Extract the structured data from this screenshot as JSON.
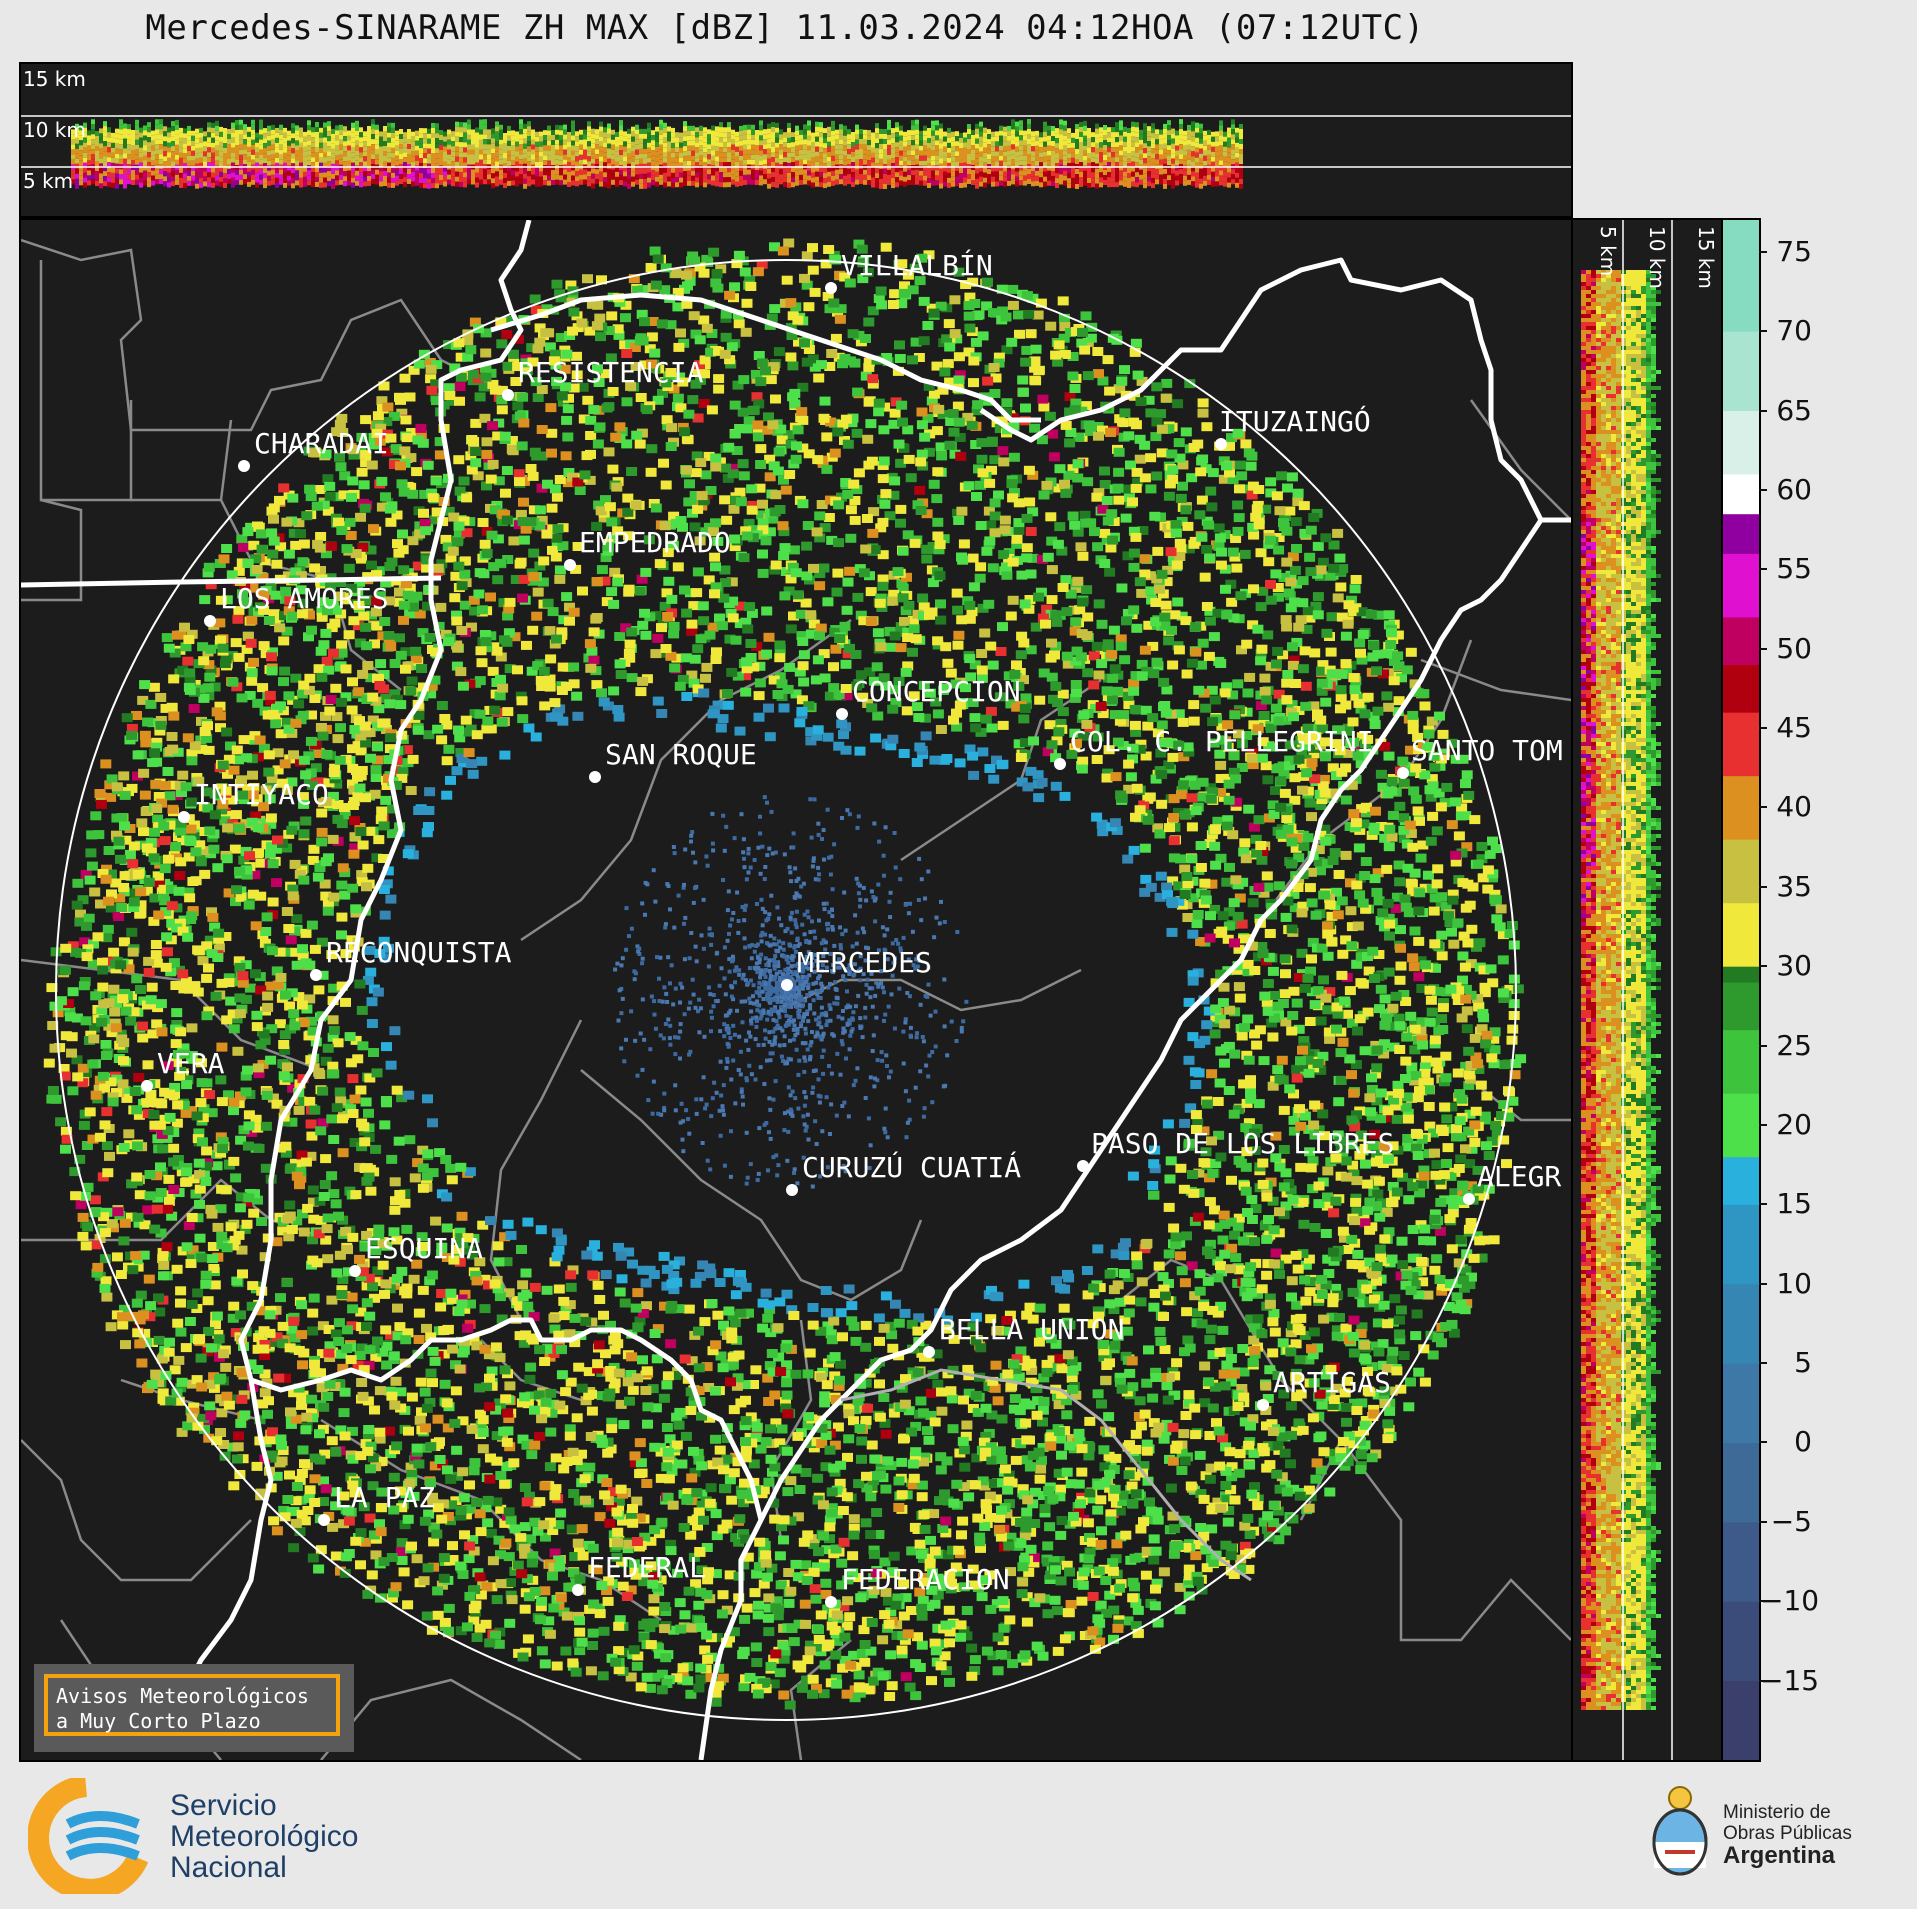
{
  "title": "Mercedes-SINARAME ZH MAX [dBZ] 11.03.2024 04:12HOA (07:12UTC)",
  "top_panel": {
    "height_labels": [
      "15 km",
      "10 km",
      "5 km"
    ]
  },
  "side_panel": {
    "height_labels": [
      "5 km",
      "10 km",
      "15 km"
    ]
  },
  "colorbar": {
    "unit": "dBZ",
    "range": [
      -20,
      77
    ],
    "ticks": [
      "75",
      "70",
      "65",
      "60",
      "55",
      "50",
      "45",
      "40",
      "35",
      "30",
      "25",
      "20",
      "15",
      "10",
      "5",
      "0",
      "−5",
      "−10",
      "−15"
    ],
    "tick_values": [
      75,
      70,
      65,
      60,
      55,
      50,
      45,
      40,
      35,
      30,
      25,
      20,
      15,
      10,
      5,
      0,
      -5,
      -10,
      -15
    ],
    "stops": [
      {
        "from": -20,
        "color": "#3a3f6b"
      },
      {
        "from": -15,
        "color": "#3b4b7a"
      },
      {
        "from": -10,
        "color": "#3d5a8a"
      },
      {
        "from": -5,
        "color": "#3e6a98"
      },
      {
        "from": 0,
        "color": "#3d78a6"
      },
      {
        "from": 5,
        "color": "#3686b4"
      },
      {
        "from": 10,
        "color": "#2f95c2"
      },
      {
        "from": 15,
        "color": "#2ab0dc"
      },
      {
        "from": 18,
        "color": "#4ee04a"
      },
      {
        "from": 22,
        "color": "#3ec43c"
      },
      {
        "from": 26,
        "color": "#2e9a2e"
      },
      {
        "from": 29,
        "color": "#227a22"
      },
      {
        "from": 30,
        "color": "#f0e83a"
      },
      {
        "from": 34,
        "color": "#c8c040"
      },
      {
        "from": 38,
        "color": "#dc9020"
      },
      {
        "from": 42,
        "color": "#e83030"
      },
      {
        "from": 46,
        "color": "#b00010"
      },
      {
        "from": 49,
        "color": "#c00060"
      },
      {
        "from": 52,
        "color": "#e010d0"
      },
      {
        "from": 56,
        "color": "#9000a0"
      },
      {
        "from": 58.5,
        "color": "#ffffff"
      },
      {
        "from": 61,
        "color": "#d8f0e8"
      },
      {
        "from": 65,
        "color": "#a8e4d0"
      },
      {
        "from": 70,
        "color": "#86dcc0"
      }
    ]
  },
  "cities": [
    {
      "name": "VILLALBÍN"
    },
    {
      "name": "RESISTENCIA"
    },
    {
      "name": "CHARADAI"
    },
    {
      "name": "ITUZAINGÓ"
    },
    {
      "name": "EMPEDRADO"
    },
    {
      "name": "LOS AMORES"
    },
    {
      "name": "CONCEPCION"
    },
    {
      "name": "SAN ROQUE"
    },
    {
      "name": "COL. C. PELLEGRINI"
    },
    {
      "name": "SANTO TOM"
    },
    {
      "name": "INTIYACO"
    },
    {
      "name": "MERCEDES"
    },
    {
      "name": "RECONQUISTA"
    },
    {
      "name": "VERA"
    },
    {
      "name": "PASO DE LOS LIBRES"
    },
    {
      "name": "CURUZÚ CUATIÁ"
    },
    {
      "name": "ALEGR"
    },
    {
      "name": "ESQUINA"
    },
    {
      "name": "BELLA UNION"
    },
    {
      "name": "ARTIGAS"
    },
    {
      "name": "LA PAZ"
    },
    {
      "name": "FEDERAL"
    },
    {
      "name": "FEDERACION"
    }
  ],
  "aviso": {
    "line1": "Avisos Meteorológicos",
    "line2": "a Muy Corto Plazo"
  },
  "footer": {
    "smn_line1": "Servicio",
    "smn_line2": "Meteorológico",
    "smn_line3": "Nacional",
    "ministry_line1": "Ministerio de",
    "ministry_line2": "Obras Públicas",
    "ministry_line3": "Argentina"
  },
  "colors": {
    "background": "#e8e8e8",
    "panel": "#1c1c1c",
    "accent_orange": "#f2a30f",
    "smn_blue": "#1e3f66"
  }
}
